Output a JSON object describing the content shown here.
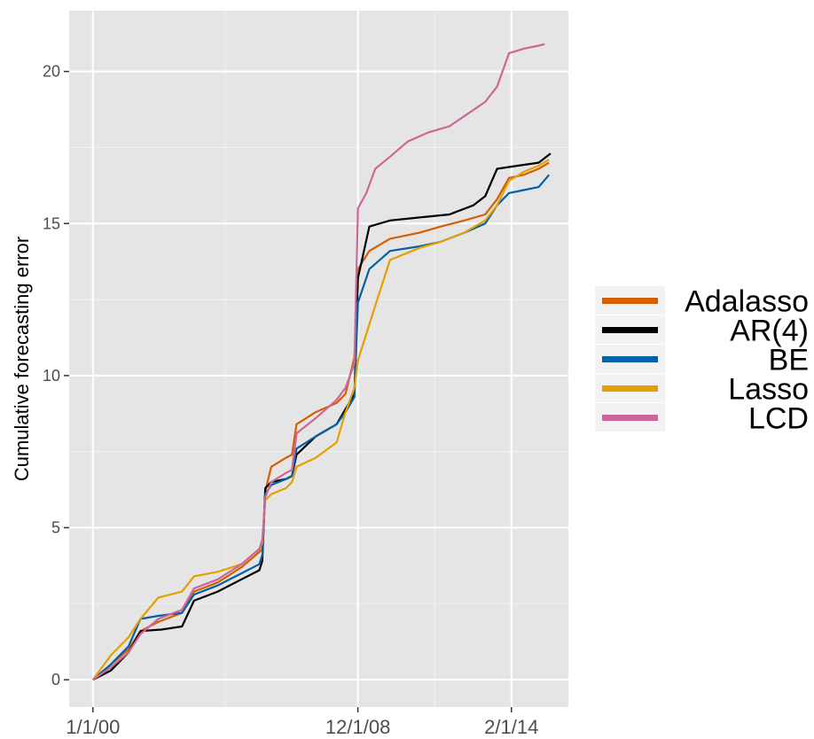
{
  "chart_data": {
    "type": "line",
    "title": "",
    "xlabel": "",
    "ylabel": "Cumulative forecasting error",
    "x_ticks": [
      "1/1/00",
      "12/1/08",
      "2/1/14"
    ],
    "y_ticks": [
      0,
      5,
      10,
      15,
      20
    ],
    "xlim": [
      1999.2,
      2016.0
    ],
    "ylim": [
      -0.9,
      22.0
    ],
    "x_unit": "year",
    "grid": true,
    "legend_position": "right",
    "series": [
      {
        "name": "Adalasso",
        "color": "#d55e00",
        "points": [
          [
            2000.0,
            0.0
          ],
          [
            2000.6,
            0.5
          ],
          [
            2001.2,
            1.0
          ],
          [
            2001.6,
            1.6
          ],
          [
            2002.2,
            1.9
          ],
          [
            2003.0,
            2.2
          ],
          [
            2003.4,
            2.9
          ],
          [
            2004.2,
            3.2
          ],
          [
            2005.0,
            3.7
          ],
          [
            2005.6,
            4.2
          ],
          [
            2005.7,
            4.3
          ],
          [
            2005.8,
            6.2
          ],
          [
            2006.0,
            7.0
          ],
          [
            2006.5,
            7.3
          ],
          [
            2006.7,
            7.4
          ],
          [
            2006.85,
            8.4
          ],
          [
            2007.5,
            8.8
          ],
          [
            2008.2,
            9.1
          ],
          [
            2008.5,
            9.4
          ],
          [
            2008.8,
            10.6
          ],
          [
            2008.92,
            13.5
          ],
          [
            2009.3,
            14.1
          ],
          [
            2010.0,
            14.5
          ],
          [
            2011.0,
            14.7
          ],
          [
            2011.7,
            14.9
          ],
          [
            2012.5,
            15.1
          ],
          [
            2013.2,
            15.3
          ],
          [
            2013.6,
            15.8
          ],
          [
            2014.0,
            16.5
          ],
          [
            2014.5,
            16.6
          ],
          [
            2015.0,
            16.8
          ],
          [
            2015.35,
            17.0
          ]
        ]
      },
      {
        "name": "AR(4)",
        "color": "#000000",
        "points": [
          [
            2000.0,
            0.0
          ],
          [
            2000.6,
            0.3
          ],
          [
            2001.2,
            0.9
          ],
          [
            2001.6,
            1.6
          ],
          [
            2002.3,
            1.65
          ],
          [
            2003.0,
            1.75
          ],
          [
            2003.4,
            2.6
          ],
          [
            2004.2,
            2.9
          ],
          [
            2005.0,
            3.3
          ],
          [
            2005.6,
            3.6
          ],
          [
            2005.7,
            3.9
          ],
          [
            2005.8,
            6.3
          ],
          [
            2006.0,
            6.5
          ],
          [
            2006.5,
            6.6
          ],
          [
            2006.7,
            6.7
          ],
          [
            2006.85,
            7.4
          ],
          [
            2007.5,
            8.0
          ],
          [
            2008.2,
            8.4
          ],
          [
            2008.5,
            8.9
          ],
          [
            2008.8,
            9.4
          ],
          [
            2008.92,
            13.2
          ],
          [
            2009.3,
            14.9
          ],
          [
            2010.0,
            15.1
          ],
          [
            2011.0,
            15.2
          ],
          [
            2012.0,
            15.3
          ],
          [
            2012.8,
            15.6
          ],
          [
            2013.2,
            15.9
          ],
          [
            2013.6,
            16.8
          ],
          [
            2014.3,
            16.9
          ],
          [
            2015.0,
            17.0
          ],
          [
            2015.4,
            17.3
          ]
        ]
      },
      {
        "name": "BE",
        "color": "#0060a8",
        "points": [
          [
            2000.0,
            0.0
          ],
          [
            2000.6,
            0.5
          ],
          [
            2001.2,
            1.1
          ],
          [
            2001.6,
            2.0
          ],
          [
            2002.2,
            2.1
          ],
          [
            2003.0,
            2.2
          ],
          [
            2003.4,
            2.8
          ],
          [
            2004.2,
            3.1
          ],
          [
            2005.0,
            3.5
          ],
          [
            2005.6,
            3.8
          ],
          [
            2005.7,
            4.1
          ],
          [
            2005.8,
            6.1
          ],
          [
            2006.0,
            6.4
          ],
          [
            2006.5,
            6.6
          ],
          [
            2006.7,
            6.7
          ],
          [
            2006.85,
            7.6
          ],
          [
            2007.5,
            8.0
          ],
          [
            2008.2,
            8.4
          ],
          [
            2008.5,
            8.8
          ],
          [
            2008.8,
            9.3
          ],
          [
            2008.92,
            12.4
          ],
          [
            2009.3,
            13.5
          ],
          [
            2010.0,
            14.1
          ],
          [
            2011.0,
            14.25
          ],
          [
            2011.7,
            14.4
          ],
          [
            2012.5,
            14.7
          ],
          [
            2013.2,
            15.0
          ],
          [
            2013.6,
            15.6
          ],
          [
            2014.0,
            16.0
          ],
          [
            2014.5,
            16.1
          ],
          [
            2015.0,
            16.2
          ],
          [
            2015.35,
            16.6
          ]
        ]
      },
      {
        "name": "Lasso",
        "color": "#e69f00",
        "points": [
          [
            2000.0,
            0.0
          ],
          [
            2000.6,
            0.8
          ],
          [
            2001.2,
            1.4
          ],
          [
            2001.6,
            2.0
          ],
          [
            2002.2,
            2.7
          ],
          [
            2003.0,
            2.9
          ],
          [
            2003.4,
            3.4
          ],
          [
            2004.2,
            3.55
          ],
          [
            2005.0,
            3.8
          ],
          [
            2005.6,
            4.3
          ],
          [
            2005.7,
            4.5
          ],
          [
            2005.8,
            5.9
          ],
          [
            2006.0,
            6.1
          ],
          [
            2006.5,
            6.3
          ],
          [
            2006.7,
            6.5
          ],
          [
            2006.85,
            7.0
          ],
          [
            2007.5,
            7.3
          ],
          [
            2008.2,
            7.8
          ],
          [
            2008.5,
            8.8
          ],
          [
            2008.8,
            9.6
          ],
          [
            2008.92,
            10.5
          ],
          [
            2009.5,
            12.3
          ],
          [
            2010.0,
            13.8
          ],
          [
            2011.0,
            14.2
          ],
          [
            2011.7,
            14.4
          ],
          [
            2012.5,
            14.7
          ],
          [
            2013.2,
            15.1
          ],
          [
            2013.6,
            15.6
          ],
          [
            2014.0,
            16.4
          ],
          [
            2014.5,
            16.7
          ],
          [
            2015.0,
            16.9
          ],
          [
            2015.35,
            17.1
          ]
        ]
      },
      {
        "name": "LCD",
        "color": "#cc6699",
        "points": [
          [
            2000.0,
            0.0
          ],
          [
            2000.6,
            0.4
          ],
          [
            2001.2,
            0.9
          ],
          [
            2001.6,
            1.5
          ],
          [
            2002.2,
            2.0
          ],
          [
            2003.0,
            2.3
          ],
          [
            2003.4,
            3.0
          ],
          [
            2004.2,
            3.3
          ],
          [
            2005.0,
            3.8
          ],
          [
            2005.6,
            4.3
          ],
          [
            2005.7,
            4.6
          ],
          [
            2005.8,
            6.0
          ],
          [
            2006.0,
            6.5
          ],
          [
            2006.5,
            6.8
          ],
          [
            2006.7,
            6.9
          ],
          [
            2006.85,
            8.1
          ],
          [
            2007.5,
            8.6
          ],
          [
            2008.2,
            9.2
          ],
          [
            2008.5,
            9.6
          ],
          [
            2008.8,
            10.4
          ],
          [
            2008.92,
            15.5
          ],
          [
            2009.2,
            16.0
          ],
          [
            2009.5,
            16.8
          ],
          [
            2010.0,
            17.2
          ],
          [
            2010.6,
            17.7
          ],
          [
            2011.3,
            18.0
          ],
          [
            2012.0,
            18.2
          ],
          [
            2012.6,
            18.6
          ],
          [
            2013.2,
            19.0
          ],
          [
            2013.6,
            19.5
          ],
          [
            2014.0,
            20.6
          ],
          [
            2014.5,
            20.75
          ],
          [
            2015.0,
            20.85
          ],
          [
            2015.2,
            20.9
          ]
        ]
      }
    ]
  }
}
